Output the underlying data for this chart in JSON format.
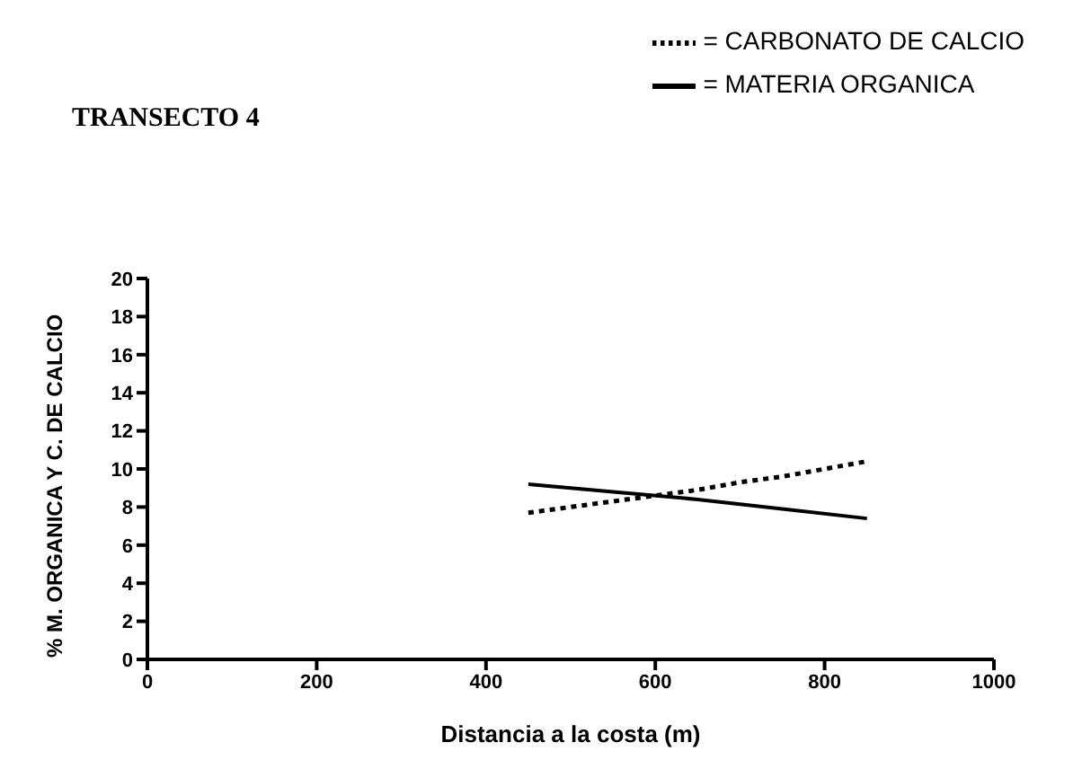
{
  "chart_data": {
    "type": "line",
    "title": "TRANSECTO 4",
    "xlabel": "Distancia a la costa (m)",
    "ylabel": "% M. ORGANICA Y C. DE CALCIO",
    "series": [
      {
        "name": "= CARBONATO DE CALCIO",
        "color": "#000000",
        "line_style": "dotted",
        "x": [
          450,
          500,
          550,
          600,
          650,
          700,
          750,
          800,
          850
        ],
        "values": [
          7.7,
          8.0,
          8.3,
          8.6,
          8.9,
          9.3,
          9.6,
          10.0,
          10.4
        ]
      },
      {
        "name": "= MATERIA ORGANICA",
        "color": "#000000",
        "line_style": "solid",
        "x": [
          450,
          550,
          650,
          750,
          850
        ],
        "values": [
          9.2,
          8.8,
          8.4,
          7.9,
          7.4
        ]
      }
    ],
    "xlim": [
      0,
      1000
    ],
    "xticks": [
      0,
      200,
      400,
      600,
      800,
      1000
    ],
    "ylim": [
      0,
      20
    ],
    "yticks": [
      0,
      2,
      4,
      6,
      8,
      10,
      12,
      14,
      16,
      18,
      20
    ],
    "grid": false,
    "legend": "top right",
    "marker": "none"
  }
}
